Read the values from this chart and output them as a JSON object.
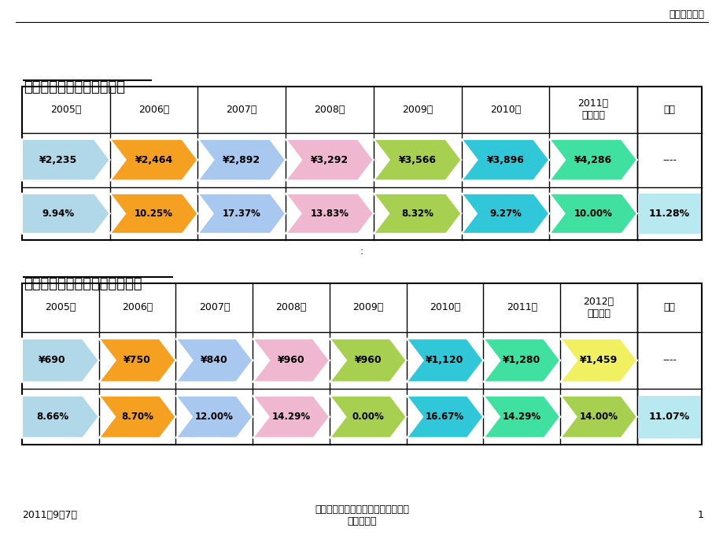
{
  "page_title": "人事及行政部",
  "table1_title": "上海市职工历年月平均工资",
  "table1_headers": [
    "2005年",
    "2006年",
    "2007年",
    "2008年",
    "2009年",
    "2010年",
    "2011年\n（预测）",
    "平均"
  ],
  "table1_wages": [
    "¥2,235",
    "¥2,464",
    "¥2,892",
    "¥3,292",
    "¥3,566",
    "¥3,896",
    "¥4,286",
    "----"
  ],
  "table1_pcts": [
    "9.94%",
    "10.25%",
    "17.37%",
    "13.83%",
    "8.32%",
    "9.27%",
    "10.00%",
    "11.28%"
  ],
  "table1_wage_colors": [
    "#b0d8e8",
    "#f5a020",
    "#a8c8f0",
    "#f0b8d0",
    "#a8d050",
    "#30c8d8",
    "#40e0a0"
  ],
  "table1_pct_colors": [
    "#b0d8e8",
    "#f5a020",
    "#a8c8f0",
    "#f0b8d0",
    "#a8d050",
    "#30c8d8",
    "#40e0a0"
  ],
  "table2_title": "上海市职工历年最低月工资标准",
  "table2_headers": [
    "2005年",
    "2006年",
    "2007年",
    "2008年",
    "2009年",
    "2010年",
    "2011年",
    "2012年\n（预测）",
    "平均"
  ],
  "table2_wages": [
    "¥690",
    "¥750",
    "¥840",
    "¥960",
    "¥960",
    "¥1,120",
    "¥1,280",
    "¥1,459",
    "----"
  ],
  "table2_pcts": [
    "8.66%",
    "8.70%",
    "12.00%",
    "14.29%",
    "0.00%",
    "16.67%",
    "14.29%",
    "14.00%",
    "11.07%"
  ],
  "table2_wage_colors": [
    "#b0d8e8",
    "#f5a020",
    "#a8c8f0",
    "#f0b8d0",
    "#a8d050",
    "#30c8d8",
    "#40e0a0",
    "#f0f060"
  ],
  "table2_pct_colors": [
    "#b0d8e8",
    "#f5a020",
    "#a8c8f0",
    "#f0b8d0",
    "#a8d050",
    "#30c8d8",
    "#40e0a0",
    "#a8d050"
  ],
  "footer_date": "2011年9月7日",
  "footer_center": "上海历年数据平均工资、最低工资、\n综保、生育",
  "footer_page": "1",
  "bg_color": "#ffffff",
  "avg_cell_color": "#b8e8f0"
}
